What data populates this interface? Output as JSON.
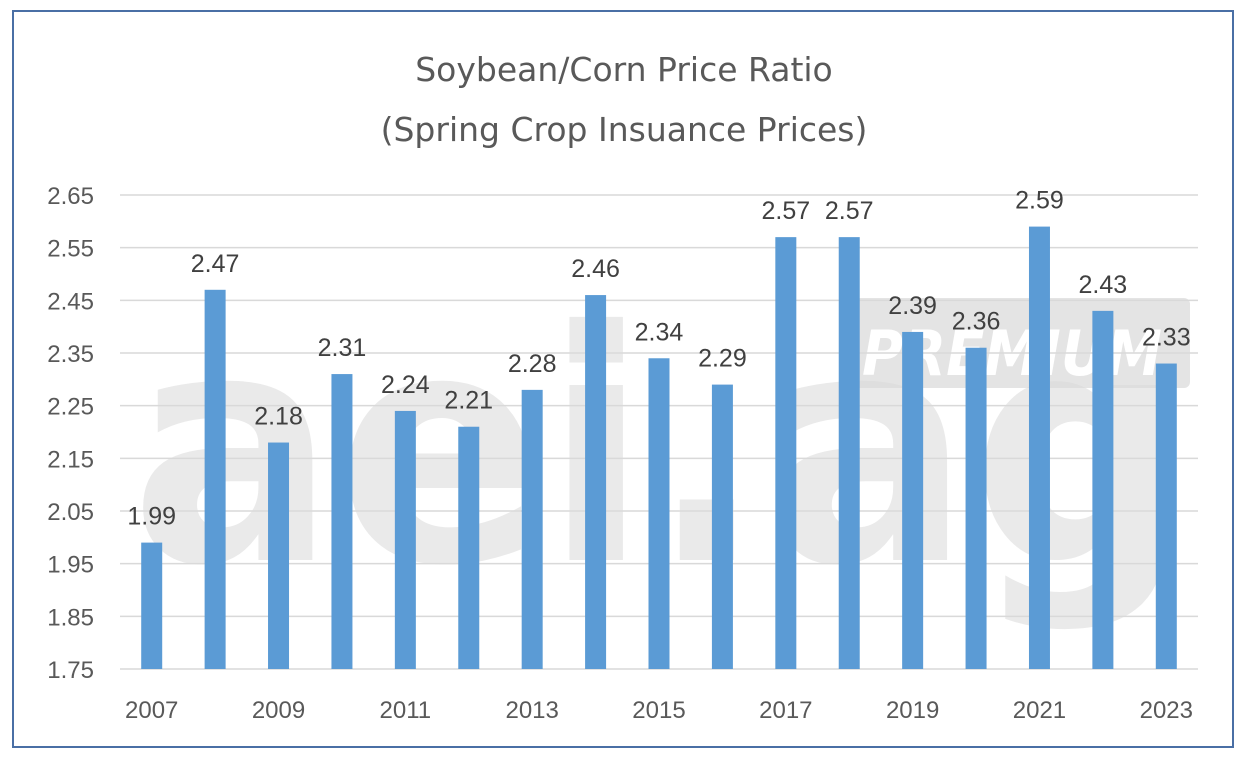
{
  "chart_data": {
    "type": "bar",
    "title_line1": "Soybean/Corn Price Ratio",
    "title_line2": "(Spring Crop Insuance Prices)",
    "categories": [
      "2007",
      "2008",
      "2009",
      "2010",
      "2011",
      "2012",
      "2013",
      "2014",
      "2015",
      "2016",
      "2017",
      "2018",
      "2019",
      "2020",
      "2021",
      "2022",
      "2023"
    ],
    "x_tick_labels": [
      "2007",
      "",
      "2009",
      "",
      "2011",
      "",
      "2013",
      "",
      "2015",
      "",
      "2017",
      "",
      "2019",
      "",
      "2021",
      "",
      "2023"
    ],
    "values": [
      1.99,
      2.47,
      2.18,
      2.31,
      2.24,
      2.21,
      2.28,
      2.46,
      2.34,
      2.29,
      2.57,
      2.57,
      2.39,
      2.36,
      2.59,
      2.43,
      2.33
    ],
    "data_labels": [
      "1.99",
      "2.47",
      "2.18",
      "2.31",
      "2.24",
      "2.21",
      "2.28",
      "2.46",
      "2.34",
      "2.29",
      "2.57",
      "2.57",
      "2.39",
      "2.36",
      "2.59",
      "2.43",
      "2.33"
    ],
    "y_ticks": [
      "1.75",
      "1.85",
      "1.95",
      "2.05",
      "2.15",
      "2.25",
      "2.35",
      "2.45",
      "2.55",
      "2.65"
    ],
    "ylim": [
      1.75,
      2.65
    ],
    "xlabel": "",
    "ylabel": "",
    "grid": true,
    "bar_color": "#5b9bd5",
    "grid_color": "#d9d9d9",
    "label_color": "#404040",
    "watermark_main": "aei.ag",
    "watermark_badge": "PREMIUM"
  }
}
